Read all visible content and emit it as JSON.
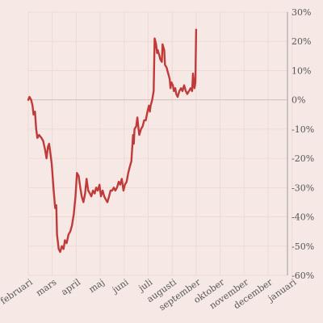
{
  "chart_data": {
    "type": "line",
    "title": "",
    "xlabel": "",
    "ylabel": "",
    "x_tick_labels": [
      "februari",
      "mars",
      "april",
      "maj",
      "juni",
      "juli",
      "augusti",
      "september",
      "oktober",
      "november",
      "december",
      "januari"
    ],
    "y_tick_labels": [
      "30%",
      "20%",
      "10%",
      "0%",
      "-10%",
      "-20%",
      "-30%",
      "-40%",
      "-50%",
      "-60%"
    ],
    "ylim": [
      -60,
      30
    ],
    "grid": true,
    "legend": "none",
    "colors": {
      "series": "#c03a3a",
      "background": "#f6e9e5",
      "grid": "#f0d9d2"
    },
    "series": [
      {
        "x_unit": "months since start of februari",
        "points": [
          [
            0.0,
            0
          ],
          [
            0.05,
            1
          ],
          [
            0.12,
            0
          ],
          [
            0.18,
            -2
          ],
          [
            0.22,
            -5
          ],
          [
            0.28,
            -4
          ],
          [
            0.33,
            -10
          ],
          [
            0.38,
            -13
          ],
          [
            0.45,
            -12
          ],
          [
            0.55,
            -13
          ],
          [
            0.62,
            -14
          ],
          [
            0.7,
            -17
          ],
          [
            0.76,
            -20
          ],
          [
            0.82,
            -16
          ],
          [
            0.87,
            -15
          ],
          [
            0.92,
            -18
          ],
          [
            0.98,
            -22
          ],
          [
            1.05,
            -30
          ],
          [
            1.12,
            -37
          ],
          [
            1.17,
            -36
          ],
          [
            1.2,
            -46
          ],
          [
            1.27,
            -51
          ],
          [
            1.33,
            -52
          ],
          [
            1.4,
            -50
          ],
          [
            1.47,
            -51
          ],
          [
            1.53,
            -48
          ],
          [
            1.6,
            -49
          ],
          [
            1.68,
            -46
          ],
          [
            1.75,
            -45
          ],
          [
            1.82,
            -43
          ],
          [
            1.9,
            -39
          ],
          [
            1.97,
            -33
          ],
          [
            2.03,
            -25
          ],
          [
            2.1,
            -26
          ],
          [
            2.17,
            -30
          ],
          [
            2.23,
            -33
          ],
          [
            2.3,
            -35
          ],
          [
            2.37,
            -32
          ],
          [
            2.43,
            -27
          ],
          [
            2.5,
            -31
          ],
          [
            2.57,
            -32
          ],
          [
            2.63,
            -33
          ],
          [
            2.7,
            -31
          ],
          [
            2.77,
            -32
          ],
          [
            2.83,
            -30
          ],
          [
            2.9,
            -31
          ],
          [
            2.97,
            -29
          ],
          [
            3.03,
            -33
          ],
          [
            3.1,
            -31
          ],
          [
            3.17,
            -33
          ],
          [
            3.23,
            -34
          ],
          [
            3.3,
            -35
          ],
          [
            3.37,
            -33
          ],
          [
            3.43,
            -31
          ],
          [
            3.5,
            -31
          ],
          [
            3.57,
            -30
          ],
          [
            3.63,
            -31
          ],
          [
            3.7,
            -30
          ],
          [
            3.77,
            -28
          ],
          [
            3.83,
            -29
          ],
          [
            3.9,
            -27
          ],
          [
            3.97,
            -31
          ],
          [
            4.03,
            -29
          ],
          [
            4.1,
            -28
          ],
          [
            4.17,
            -25
          ],
          [
            4.23,
            -23
          ],
          [
            4.3,
            -21
          ],
          [
            4.33,
            -17
          ],
          [
            4.37,
            -12
          ],
          [
            4.4,
            -15
          ],
          [
            4.43,
            -10
          ],
          [
            4.5,
            -9
          ],
          [
            4.55,
            -6
          ],
          [
            4.6,
            -10
          ],
          [
            4.63,
            -12
          ],
          [
            4.7,
            -10
          ],
          [
            4.77,
            -9
          ],
          [
            4.83,
            -7
          ],
          [
            4.9,
            -7
          ],
          [
            4.97,
            -4
          ],
          [
            5.03,
            -2
          ],
          [
            5.07,
            -4
          ],
          [
            5.1,
            -2
          ],
          [
            5.17,
            0
          ],
          [
            5.23,
            3
          ],
          [
            5.27,
            21
          ],
          [
            5.33,
            19
          ],
          [
            5.37,
            16
          ],
          [
            5.4,
            17
          ],
          [
            5.47,
            15
          ],
          [
            5.5,
            14
          ],
          [
            5.57,
            13
          ],
          [
            5.6,
            19
          ],
          [
            5.67,
            17
          ],
          [
            5.7,
            12
          ],
          [
            5.77,
            11
          ],
          [
            5.8,
            10
          ],
          [
            5.87,
            8
          ],
          [
            5.9,
            7
          ],
          [
            5.93,
            4
          ],
          [
            5.97,
            6
          ],
          [
            6.03,
            5
          ],
          [
            6.07,
            3
          ],
          [
            6.13,
            4
          ],
          [
            6.17,
            2
          ],
          [
            6.23,
            1
          ],
          [
            6.3,
            3
          ],
          [
            6.37,
            4
          ],
          [
            6.43,
            3
          ],
          [
            6.5,
            5
          ],
          [
            6.57,
            3
          ],
          [
            6.63,
            2
          ],
          [
            6.7,
            3
          ],
          [
            6.77,
            4
          ],
          [
            6.83,
            3
          ],
          [
            6.87,
            9
          ],
          [
            6.93,
            4
          ],
          [
            6.97,
            6
          ],
          [
            7.0,
            24
          ]
        ],
        "x_range": [
          0,
          7.0
        ]
      }
    ]
  }
}
